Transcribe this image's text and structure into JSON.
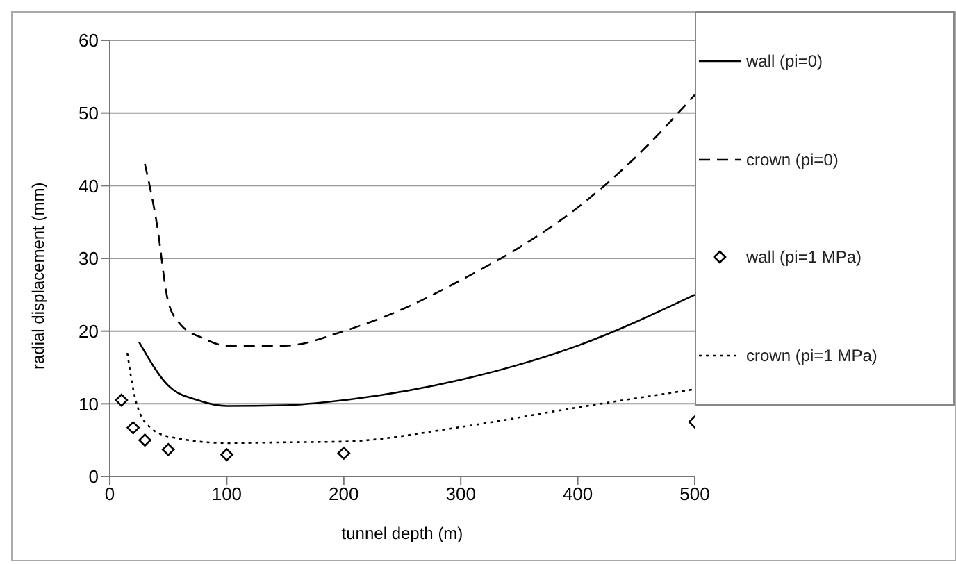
{
  "chart_data": {
    "type": "line",
    "xlabel": "tunnel depth (m)",
    "ylabel": "radial displacement (mm)",
    "xlim": [
      0,
      500
    ],
    "xticks": [
      0,
      100,
      200,
      300,
      400,
      500
    ],
    "ylim": [
      0,
      60
    ],
    "yticks": [
      0,
      10,
      20,
      30,
      40,
      50,
      60
    ],
    "grid": "y",
    "legend": "right",
    "series": [
      {
        "name": "wall (pi=0)",
        "color": "#000000",
        "line_style": "solid",
        "x": [
          25,
          50,
          75,
          100,
          150,
          200,
          300,
          400,
          500
        ],
        "values": [
          18.5,
          12.5,
          10.5,
          9.7,
          9.8,
          10.5,
          13.3,
          18,
          25
        ]
      },
      {
        "name": "crown (pi=0)",
        "color": "#000000",
        "line_style": "dashed",
        "x": [
          30,
          40,
          50,
          60,
          80,
          100,
          150,
          200,
          250,
          300,
          350,
          400,
          450,
          500
        ],
        "values": [
          43,
          35,
          24,
          21,
          19,
          18,
          18,
          20,
          23,
          27,
          31.5,
          37,
          44,
          52.5
        ]
      },
      {
        "name": "wall (pi=1 MPa)",
        "type": "scatter",
        "marker": "diamond",
        "color": "#000000",
        "x": [
          10,
          20,
          30,
          50,
          100,
          200,
          500
        ],
        "values": [
          10.5,
          6.7,
          5,
          3.7,
          3,
          3.2,
          7.5
        ]
      },
      {
        "name": "crown (pi=1 MPa)",
        "color": "#000000",
        "line_style": "dotted",
        "x": [
          15,
          20,
          30,
          50,
          100,
          150,
          200,
          300,
          400,
          500
        ],
        "values": [
          17,
          12,
          7.5,
          5.5,
          4.6,
          4.7,
          4.8,
          6.8,
          9.5,
          12
        ]
      }
    ]
  }
}
